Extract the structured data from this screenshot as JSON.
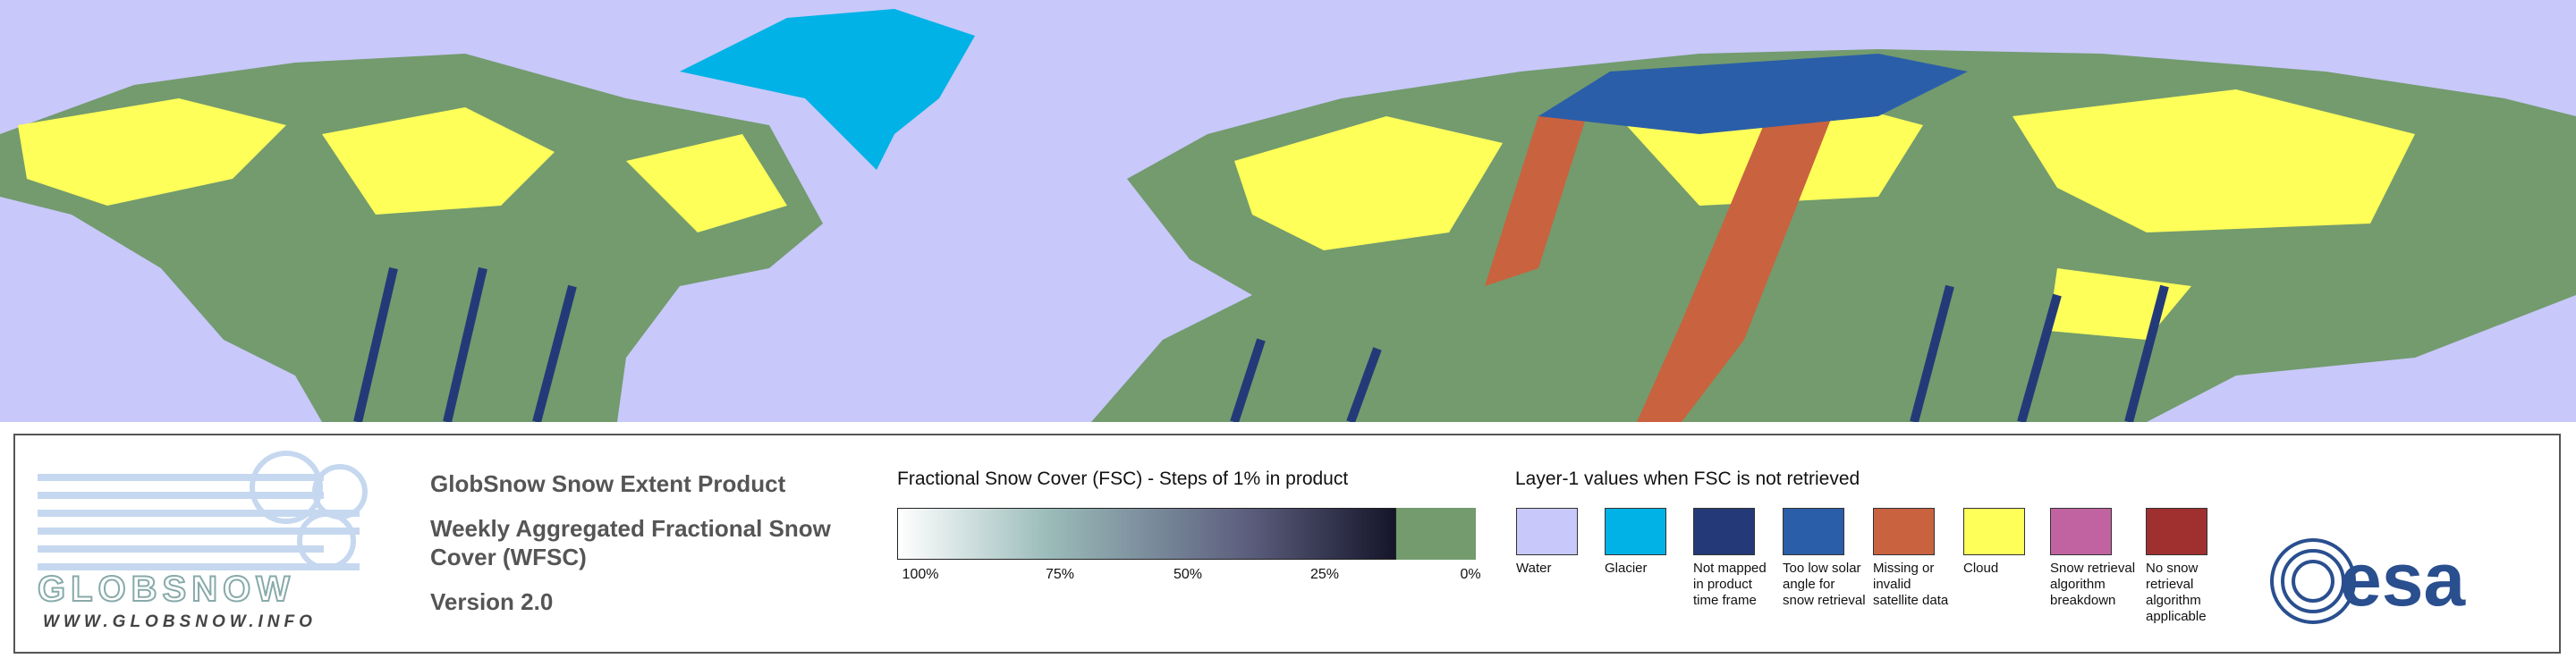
{
  "logo": {
    "wordmark": "GLOBSNOW",
    "url": "WWW.GLOBSNOW.INFO"
  },
  "product": {
    "title": "GlobSnow Snow Extent Product",
    "subtitle": "Weekly Aggregated Fractional Snow Cover (WFSC)",
    "version": "Version 2.0"
  },
  "fsc_legend": {
    "title": "Fractional Snow Cover (FSC) - Steps of 1% in product",
    "ticks": [
      "100%",
      "75%",
      "50%",
      "25%",
      "0%"
    ]
  },
  "layer1_legend": {
    "title": "Layer-1 values when FSC is not retrieved",
    "items": [
      {
        "label": "Water",
        "color": "#c8c8fa"
      },
      {
        "label": "Glacier",
        "color": "#00b2e6"
      },
      {
        "label": "Not mapped in product time frame",
        "color": "#243a78"
      },
      {
        "label": "Too low solar angle for snow retrieval",
        "color": "#2b5ea8"
      },
      {
        "label": "Missing or invalid satellite data",
        "color": "#c9623f"
      },
      {
        "label": "Cloud",
        "color": "#ffff5a"
      },
      {
        "label": "Snow retrieval algorithm breakdown",
        "color": "#c063a0"
      },
      {
        "label": "No snow retrieval algorithm applicable",
        "color": "#a02f30"
      }
    ]
  },
  "agency": "esa"
}
